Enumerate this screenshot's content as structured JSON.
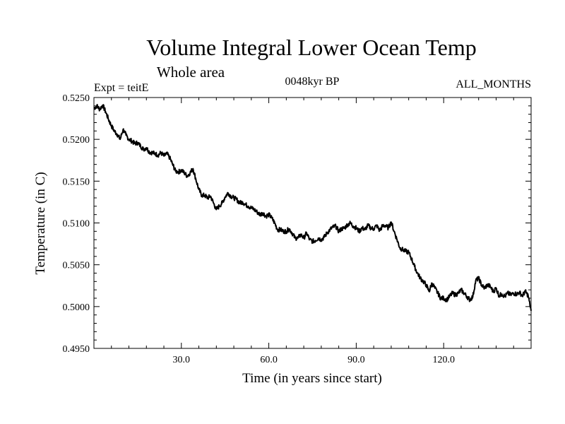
{
  "chart_data": {
    "type": "line",
    "title": "Volume Integral Lower Ocean Temp",
    "subtitle": "Whole area",
    "experiment": "Expt = teitE",
    "period": "0048kyr BP",
    "months": "ALL_MONTHS",
    "xlabel": "Time (in years since start)",
    "ylabel": "Temperature (in C)",
    "xlim": [
      0,
      150
    ],
    "ylim": [
      0.495,
      0.525
    ],
    "x_ticks": [
      {
        "value": 30,
        "label": "30.0"
      },
      {
        "value": 60,
        "label": "60.0"
      },
      {
        "value": 90,
        "label": "90.0"
      },
      {
        "value": 120,
        "label": "120.0"
      }
    ],
    "y_ticks": [
      {
        "value": 0.495,
        "label": "0.4950"
      },
      {
        "value": 0.5,
        "label": "0.5000"
      },
      {
        "value": 0.505,
        "label": "0.5050"
      },
      {
        "value": 0.51,
        "label": "0.5100"
      },
      {
        "value": 0.515,
        "label": "0.5150"
      },
      {
        "value": 0.52,
        "label": "0.5200"
      },
      {
        "value": 0.525,
        "label": "0.5250"
      }
    ],
    "grid": false,
    "series": [
      {
        "name": "Volume integral lower ocean temperature",
        "color": "#000000",
        "x": [
          0,
          1,
          2,
          3,
          4,
          5,
          6,
          7,
          8,
          9,
          10,
          11,
          12,
          13,
          14,
          15,
          16,
          17,
          18,
          19,
          20,
          21,
          22,
          23,
          24,
          25,
          26,
          27,
          28,
          29,
          30,
          31,
          32,
          33,
          34,
          35,
          36,
          37,
          38,
          39,
          40,
          41,
          42,
          43,
          44,
          45,
          46,
          47,
          48,
          49,
          50,
          51,
          52,
          53,
          54,
          55,
          56,
          57,
          58,
          59,
          60,
          61,
          62,
          63,
          64,
          65,
          66,
          67,
          68,
          69,
          70,
          71,
          72,
          73,
          74,
          75,
          76,
          77,
          78,
          79,
          80,
          81,
          82,
          83,
          84,
          85,
          86,
          87,
          88,
          89,
          90,
          91,
          92,
          93,
          94,
          95,
          96,
          97,
          98,
          99,
          100,
          101,
          102,
          103,
          104,
          105,
          106,
          107,
          108,
          109,
          110,
          111,
          112,
          113,
          114,
          115,
          116,
          117,
          118,
          119,
          120,
          121,
          122,
          123,
          124,
          125,
          126,
          127,
          128,
          129,
          130,
          131,
          132,
          133,
          134,
          135,
          136,
          137,
          138,
          139,
          140,
          141,
          142,
          143,
          144,
          145,
          146,
          147,
          148,
          149,
          150
        ],
        "values": [
          0.5237,
          0.524,
          0.5236,
          0.5241,
          0.5233,
          0.5224,
          0.5216,
          0.521,
          0.5206,
          0.52,
          0.5212,
          0.5205,
          0.52,
          0.5198,
          0.5195,
          0.5196,
          0.5192,
          0.5188,
          0.519,
          0.5185,
          0.5184,
          0.5183,
          0.5181,
          0.5184,
          0.518,
          0.5183,
          0.5178,
          0.517,
          0.5162,
          0.5161,
          0.5163,
          0.516,
          0.5156,
          0.516,
          0.5165,
          0.5152,
          0.514,
          0.5133,
          0.5133,
          0.513,
          0.5132,
          0.5124,
          0.5116,
          0.512,
          0.5124,
          0.5131,
          0.5136,
          0.5132,
          0.513,
          0.5128,
          0.5124,
          0.5125,
          0.5122,
          0.512,
          0.5118,
          0.5116,
          0.5113,
          0.511,
          0.5112,
          0.5108,
          0.511,
          0.5106,
          0.51,
          0.5092,
          0.5092,
          0.509,
          0.509,
          0.5093,
          0.5088,
          0.5082,
          0.5082,
          0.5086,
          0.5082,
          0.5088,
          0.508,
          0.5078,
          0.5079,
          0.5082,
          0.508,
          0.5083,
          0.5088,
          0.5092,
          0.5095,
          0.5096,
          0.509,
          0.5093,
          0.5094,
          0.5098,
          0.51,
          0.5096,
          0.5094,
          0.509,
          0.5094,
          0.5092,
          0.5097,
          0.5094,
          0.5093,
          0.5097,
          0.5091,
          0.5096,
          0.5097,
          0.5094,
          0.5101,
          0.509,
          0.508,
          0.507,
          0.5068,
          0.5066,
          0.5065,
          0.5057,
          0.5048,
          0.504,
          0.5034,
          0.503,
          0.5026,
          0.5018,
          0.5028,
          0.5022,
          0.5016,
          0.501,
          0.501,
          0.5008,
          0.5012,
          0.5016,
          0.5014,
          0.5016,
          0.502,
          0.5016,
          0.5012,
          0.5008,
          0.5012,
          0.5031,
          0.5034,
          0.5026,
          0.5022,
          0.5026,
          0.5024,
          0.5018,
          0.5022,
          0.5013,
          0.5015,
          0.5012,
          0.5016,
          0.5014,
          0.5016,
          0.5015,
          0.5017,
          0.5013,
          0.5018,
          0.5013,
          0.4995
        ]
      }
    ]
  }
}
